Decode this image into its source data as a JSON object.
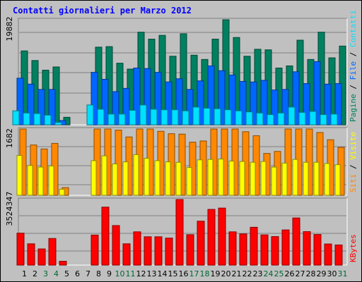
{
  "title": "Contatti giornalieri per Marzo 2012",
  "colors": {
    "background": "#c0c0c0",
    "title": "#0000ff",
    "weekday_label": "#000000",
    "weekend_label": "#006633",
    "pagine": "#00e0ff",
    "file": "#0066ff",
    "contatti": "#008060",
    "siti": "#ff8800",
    "visite": "#ffff00",
    "kbytes": "#ff0000"
  },
  "chart_data": [
    {
      "type": "bar",
      "name": "contatti-panel",
      "max_label": "19882",
      "ylim": [
        0,
        19882
      ],
      "right_labels": [
        "Pagine",
        "File",
        "Contatti"
      ],
      "right_separator": "/",
      "categories": [
        "1",
        "2",
        "3",
        "4",
        "5",
        "6",
        "7",
        "8",
        "9",
        "10",
        "11",
        "12",
        "13",
        "14",
        "15",
        "16",
        "17",
        "18",
        "19",
        "20",
        "21",
        "22",
        "23",
        "24",
        "25",
        "26",
        "27",
        "28",
        "29",
        "30",
        "31"
      ],
      "series": [
        {
          "name": "Contatti",
          "color_key": "contatti",
          "values": [
            13800,
            12000,
            10200,
            10800,
            1400,
            0,
            0,
            14500,
            14600,
            11500,
            10400,
            17300,
            16000,
            16700,
            12800,
            17000,
            13000,
            12200,
            16000,
            20800,
            16300,
            12800,
            14100,
            14000,
            10600,
            11000,
            15800,
            12200,
            17300,
            12500,
            14700
          ]
        },
        {
          "name": "File",
          "color_key": "file",
          "values": [
            8700,
            7600,
            6600,
            6600,
            800,
            0,
            0,
            9800,
            8500,
            6200,
            6800,
            10600,
            10500,
            9800,
            8000,
            8600,
            6600,
            8200,
            11000,
            10100,
            9300,
            8100,
            8000,
            8300,
            6500,
            6600,
            9900,
            7700,
            11800,
            7600,
            7700
          ]
        },
        {
          "name": "Pagine",
          "color_key": "pagine",
          "values": [
            2600,
            2200,
            2100,
            1800,
            450,
            0,
            0,
            3700,
            2900,
            2000,
            2000,
            2700,
            3700,
            2900,
            2800,
            2800,
            2600,
            3300,
            3100,
            3000,
            2800,
            2600,
            2400,
            2200,
            1900,
            2200,
            3300,
            2300,
            2500,
            1900,
            2000
          ]
        }
      ]
    },
    {
      "type": "bar",
      "name": "visite-panel",
      "max_label": "1682",
      "ylim": [
        0,
        1682
      ],
      "right_labels": [
        "Siti",
        "Visite"
      ],
      "right_separator": "/",
      "categories": [
        "1",
        "2",
        "3",
        "4",
        "5",
        "6",
        "7",
        "8",
        "9",
        "10",
        "11",
        "12",
        "13",
        "14",
        "15",
        "16",
        "17",
        "18",
        "19",
        "20",
        "21",
        "22",
        "23",
        "24",
        "25",
        "26",
        "27",
        "28",
        "29",
        "30",
        "31"
      ],
      "series": [
        {
          "name": "Siti",
          "color_key": "siti",
          "values": [
            1700,
            1250,
            1150,
            1290,
            190,
            0,
            0,
            1690,
            1720,
            1620,
            1450,
            1700,
            1700,
            1590,
            1530,
            1520,
            1320,
            1350,
            1700,
            1680,
            1670,
            1580,
            1480,
            1040,
            1090,
            1700,
            1660,
            1660,
            1560,
            1380,
            1190
          ]
        },
        {
          "name": "Visite",
          "color_key": "visite",
          "values": [
            990,
            740,
            700,
            730,
            150,
            0,
            0,
            860,
            980,
            780,
            830,
            1010,
            920,
            860,
            830,
            820,
            690,
            880,
            890,
            900,
            850,
            840,
            820,
            840,
            700,
            800,
            890,
            820,
            820,
            790,
            760
          ]
        }
      ]
    },
    {
      "type": "bar",
      "name": "kbytes-panel",
      "max_label": "3524347",
      "ylim": [
        0,
        3524347
      ],
      "right_labels": [
        "KBytes"
      ],
      "right_separator": "/",
      "categories": [
        "1",
        "2",
        "3",
        "4",
        "5",
        "6",
        "7",
        "8",
        "9",
        "10",
        "11",
        "12",
        "13",
        "14",
        "15",
        "16",
        "17",
        "18",
        "19",
        "20",
        "21",
        "22",
        "23",
        "24",
        "25",
        "26",
        "27",
        "28",
        "29",
        "30",
        "31"
      ],
      "series": [
        {
          "name": "KBytes",
          "color_key": "kbytes",
          "values": [
            1680000,
            1120000,
            850000,
            1400000,
            200000,
            0,
            0,
            1580000,
            3050000,
            2080000,
            1120000,
            1750000,
            1490000,
            1490000,
            1420000,
            3500000,
            1600000,
            2310000,
            2930000,
            3000000,
            1750000,
            1640000,
            1990000,
            1590000,
            1500000,
            1850000,
            2480000,
            1760000,
            1610000,
            1110000,
            1060000
          ]
        }
      ]
    }
  ],
  "x_axis": {
    "labels": [
      "1",
      "2",
      "3",
      "4",
      "5",
      "6",
      "7",
      "8",
      "9",
      "10",
      "11",
      "12",
      "13",
      "14",
      "15",
      "16",
      "17",
      "18",
      "19",
      "20",
      "21",
      "22",
      "23",
      "24",
      "25",
      "26",
      "27",
      "28",
      "29",
      "30",
      "31"
    ],
    "weekend": [
      false,
      false,
      true,
      true,
      false,
      false,
      false,
      false,
      false,
      true,
      true,
      false,
      false,
      false,
      false,
      false,
      true,
      true,
      false,
      false,
      false,
      false,
      false,
      true,
      true,
      false,
      false,
      false,
      false,
      false,
      true
    ]
  }
}
